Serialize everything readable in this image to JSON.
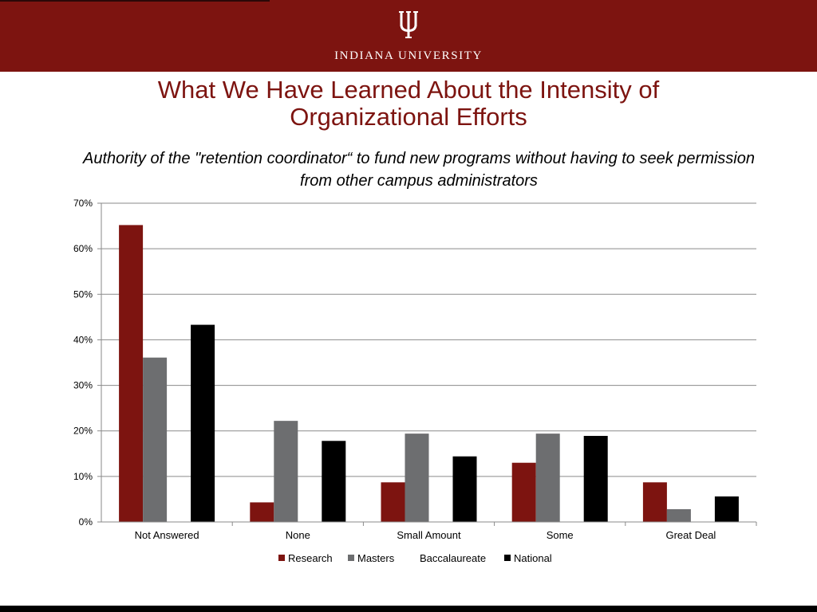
{
  "header": {
    "logo_text": "INDIANA UNIVERSITY",
    "banner_color": "#7d1410",
    "logo_icon": "trident-icon"
  },
  "slide": {
    "title_line1": "What We Have Learned About the Intensity of",
    "title_line2": "Organizational Efforts",
    "subtitle_line1": "Authority of the \"retention coordinator“ to fund new programs without having to seek permission",
    "subtitle_line2": "from other campus administrators"
  },
  "chart_data": {
    "type": "bar",
    "categories": [
      "Not Answered",
      "None",
      "Small Amount",
      "Some",
      "Great Deal"
    ],
    "series": [
      {
        "name": "Research",
        "color": "#7d1410",
        "values": [
          65.2,
          4.3,
          8.7,
          13.0,
          8.7
        ]
      },
      {
        "name": "Masters",
        "color": "#6d6e70",
        "values": [
          36.1,
          22.2,
          19.4,
          19.4,
          2.8
        ]
      },
      {
        "name": "Baccalaureate",
        "color": "#ffffff",
        "values": [
          0,
          0,
          0,
          0,
          0
        ]
      },
      {
        "name": "National",
        "color": "#000000",
        "values": [
          43.3,
          17.8,
          14.4,
          18.9,
          5.6
        ]
      }
    ],
    "ylim": [
      0,
      70
    ],
    "yticks": [
      "0%",
      "10%",
      "20%",
      "30%",
      "40%",
      "50%",
      "60%",
      "70%"
    ],
    "grid": true,
    "legend": "bottom"
  }
}
